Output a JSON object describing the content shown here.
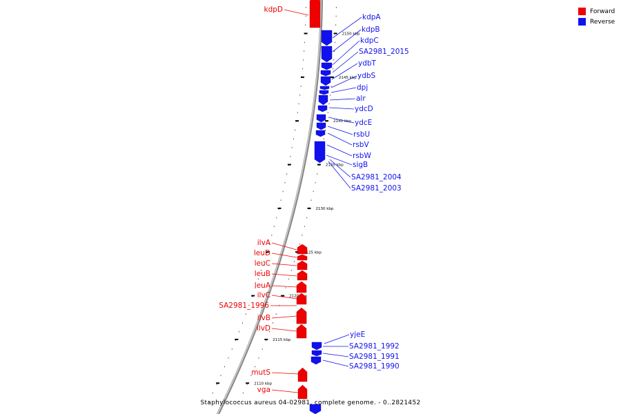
{
  "caption": "Staphylococcus aureus 04-02981, complete genome. - 0..2821452",
  "legend": [
    {
      "label": "Forward",
      "color": "#ee0000"
    },
    {
      "label": "Reverse",
      "color": "#1111ee"
    }
  ],
  "ticks": [
    "2150 kbp",
    "2145 kbp",
    "2140 kbp",
    "2135 kbp",
    "2130 kbp",
    "2125 kbp",
    "2120 kbp",
    "2115 kbp",
    "2110 kbp"
  ],
  "forward_genes": [
    "kdpD",
    "ilvA",
    "leuD",
    "leuC",
    "leuB",
    "leuA",
    "ilvC",
    "SA2981_1996",
    "ilvB",
    "ilvD",
    "mutS",
    "vga"
  ],
  "reverse_genes": [
    "kdpA",
    "kdpB",
    "kdpC",
    "SA2981_2015",
    "ydbT",
    "ydbS",
    "dpj",
    "alr",
    "ydcD",
    "ydcE",
    "rsbU",
    "rsbV",
    "rsbW",
    "sigB",
    "SA2981_2004",
    "SA2981_2003",
    "yjeE",
    "SA2981_1992",
    "SA2981_1991",
    "SA2981_1990"
  ]
}
